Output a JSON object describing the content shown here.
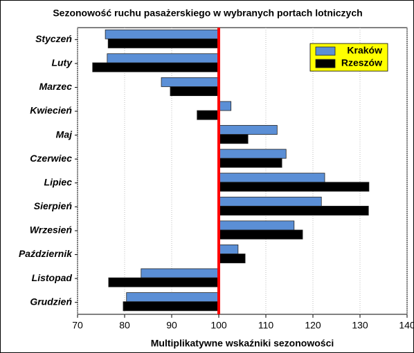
{
  "chart_data": {
    "type": "bar",
    "orientation": "horizontal",
    "base": 100,
    "title": "Sezonowość ruchu pasażerskiego w  wybranych portach lotniczych",
    "xlabel": "Multiplikatywne wskaźniki sezonowości",
    "categories": [
      "Styczeń",
      "Luty",
      "Marzec",
      "Kwiecień",
      "Maj",
      "Czerwiec",
      "Lipiec",
      "Sierpień",
      "Wrzesień",
      "Październik",
      "Listopad",
      "Grudzień"
    ],
    "series": [
      {
        "name": "Kraków",
        "color": "#5b8fd6",
        "values": [
          75.9,
          76.3,
          87.8,
          102.6,
          112.4,
          114.3,
          122.5,
          121.8,
          116,
          104.1,
          83.5,
          80.4
        ]
      },
      {
        "name": "Rzeszów",
        "color": "#000000",
        "values": [
          76.5,
          73.2,
          89.7,
          95.4,
          106.2,
          113.4,
          131.9,
          131.8,
          117.8,
          105.6,
          76.6,
          79.7
        ]
      }
    ],
    "xlim": [
      70,
      140
    ],
    "xticks": [
      70,
      80,
      90,
      100,
      110,
      120,
      130,
      140
    ],
    "grid": true,
    "legend": "top-right",
    "reference_line_color": "#ff0000"
  }
}
